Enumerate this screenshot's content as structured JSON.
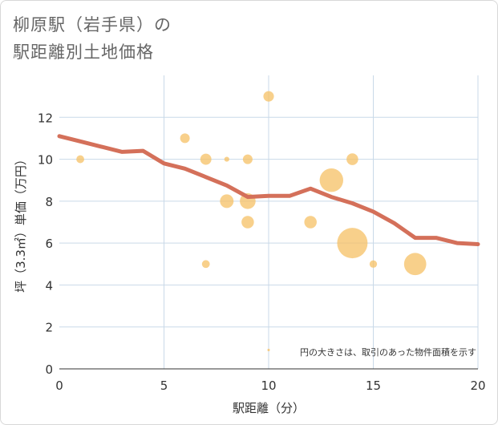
{
  "title_line1": "柳原駅（岩手県）の",
  "title_line2": "駅距離別土地価格",
  "chart_data": {
    "type": "scatter",
    "title": "柳原駅（岩手県）の駅距離別土地価格",
    "xlabel": "駅距離（分）",
    "ylabel": "坪（3.3㎡）単価（万円）",
    "xlim": [
      0,
      20
    ],
    "ylim": [
      0,
      14
    ],
    "x_ticks": [
      0,
      5,
      10,
      15,
      20
    ],
    "y_ticks": [
      0,
      2,
      4,
      6,
      8,
      10,
      12
    ],
    "grid": true,
    "note": "円の大きさは、取引のあった物件面積を示す",
    "bubble_color": "#f5c064",
    "line_color": "#d4705a",
    "scatter": [
      {
        "x": 1,
        "y": 10,
        "size": 1
      },
      {
        "x": 6,
        "y": 11,
        "size": 1.5
      },
      {
        "x": 7,
        "y": 10,
        "size": 2
      },
      {
        "x": 7,
        "y": 5,
        "size": 1
      },
      {
        "x": 8,
        "y": 10,
        "size": 0.4
      },
      {
        "x": 8,
        "y": 8,
        "size": 3
      },
      {
        "x": 9,
        "y": 10,
        "size": 1.5
      },
      {
        "x": 9,
        "y": 8,
        "size": 4
      },
      {
        "x": 9,
        "y": 7,
        "size": 2.5
      },
      {
        "x": 10,
        "y": 13,
        "size": 1.8
      },
      {
        "x": 10,
        "y": 0.9,
        "size": 0.1
      },
      {
        "x": 12,
        "y": 7,
        "size": 2.5
      },
      {
        "x": 13,
        "y": 9,
        "size": 9
      },
      {
        "x": 14,
        "y": 10,
        "size": 2.2
      },
      {
        "x": 14,
        "y": 6,
        "size": 15
      },
      {
        "x": 15,
        "y": 5,
        "size": 0.9
      },
      {
        "x": 17,
        "y": 5,
        "size": 8
      }
    ],
    "trend": {
      "x": [
        0,
        1,
        2,
        3,
        4,
        5,
        6,
        7,
        8,
        9,
        10,
        11,
        12,
        13,
        14,
        15,
        16,
        17,
        18,
        19,
        20
      ],
      "y": [
        11.1,
        10.85,
        10.6,
        10.35,
        10.4,
        9.8,
        9.55,
        9.15,
        8.75,
        8.2,
        8.25,
        8.25,
        8.6,
        8.2,
        7.9,
        7.5,
        6.95,
        6.25,
        6.25,
        6.0,
        5.95
      ]
    }
  }
}
